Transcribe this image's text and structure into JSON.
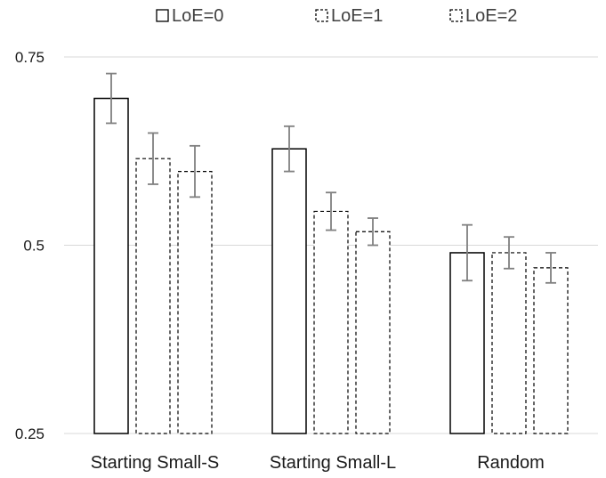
{
  "chart_data": {
    "type": "bar",
    "title": "",
    "xlabel": "",
    "ylabel": "",
    "ylim": [
      0.25,
      0.75
    ],
    "yticks": [
      0.25,
      0.5,
      0.75
    ],
    "ytick_labels": [
      "0.25",
      "0.5",
      "0.75"
    ],
    "grid": "horizontal",
    "legend_position": "top",
    "categories": [
      "Starting Small-S",
      "Starting Small-L",
      "Random"
    ],
    "series": [
      {
        "name": "LoE=0",
        "style": "solid",
        "values": [
          0.695,
          0.628,
          0.49
        ],
        "error": [
          0.033,
          0.03,
          0.037
        ]
      },
      {
        "name": "LoE=1",
        "style": "dashed",
        "values": [
          0.615,
          0.545,
          0.49
        ],
        "error": [
          0.034,
          0.025,
          0.021
        ]
      },
      {
        "name": "LoE=2",
        "style": "dashed",
        "values": [
          0.598,
          0.518,
          0.47
        ],
        "error": [
          0.034,
          0.018,
          0.02
        ]
      }
    ],
    "colors": {
      "bar_fill": "#ffffff",
      "bar_stroke": "#000000",
      "error_bar": "#808080",
      "gridline": "#d9d9d9"
    }
  }
}
